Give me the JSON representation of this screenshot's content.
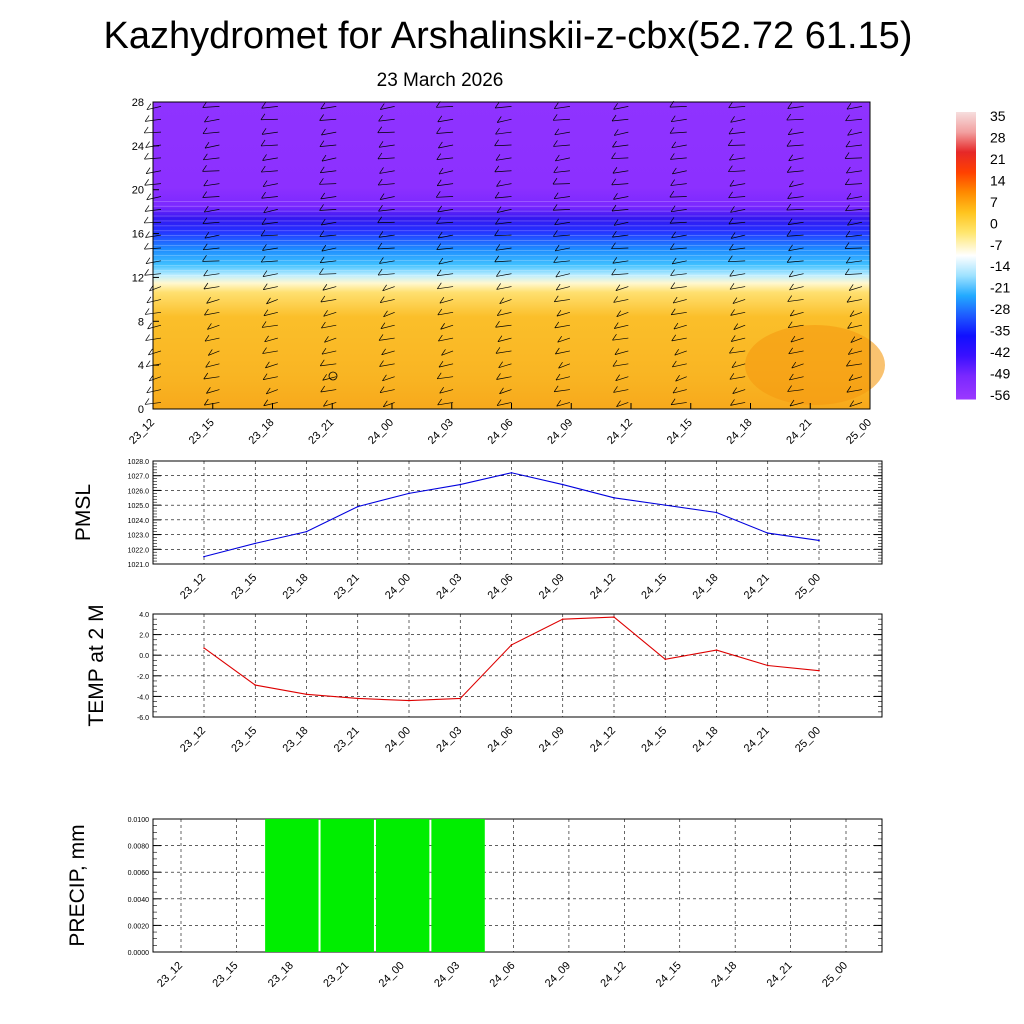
{
  "title": "Kazhydromet for Arshalinskii-z-cbx(52.72 61.15)",
  "subtitle": "23 March 2026",
  "time_labels": [
    "23_12",
    "23_15",
    "23_18",
    "23_21",
    "24_00",
    "24_03",
    "24_06",
    "24_09",
    "24_12",
    "24_15",
    "24_18",
    "24_21",
    "25_00"
  ],
  "colorbar": {
    "labels": [
      "35",
      "28",
      "21",
      "14",
      "7",
      "0",
      "-7",
      "-14",
      "-21",
      "-28",
      "-35",
      "-42",
      "-49",
      "-56"
    ],
    "colors": [
      "#ffffff",
      "#f2b4b4",
      "#e83030",
      "#ff5a00",
      "#ff9a00",
      "#ffd21e",
      "#fff5a0",
      "#ffffff",
      "#a0e6ff",
      "#28b4ff",
      "#1e64ff",
      "#0000ff",
      "#5a14ff",
      "#9632ff"
    ]
  },
  "chart_data": [
    {
      "type": "heatmap",
      "title": "",
      "ylabel": "",
      "ylim": [
        0,
        28
      ],
      "yticks": [
        "0",
        "4",
        "8",
        "12",
        "16",
        "20",
        "24",
        "28"
      ],
      "categories": [
        "23_12",
        "23_15",
        "23_18",
        "23_21",
        "24_00",
        "24_03",
        "24_06",
        "24_09",
        "24_12",
        "24_15",
        "24_18",
        "24_21",
        "25_00"
      ],
      "value_units": "temperature",
      "levels_temperature": [
        {
          "level": 0,
          "value": 5
        },
        {
          "level": 4,
          "value": 4
        },
        {
          "level": 8,
          "value": 2
        },
        {
          "level": 11,
          "value": -3
        },
        {
          "level": 12,
          "value": -14
        },
        {
          "level": 14,
          "value": -30
        },
        {
          "level": 16,
          "value": -45
        },
        {
          "level": 18,
          "value": -56
        },
        {
          "level": 20,
          "value": -60
        },
        {
          "level": 28,
          "value": -60
        }
      ],
      "overlay": "wind barbs",
      "colors": {
        "warm": "#f9b21a",
        "cold": "#9632ff"
      }
    },
    {
      "type": "line",
      "ylabel": "PMSL",
      "ylim": [
        1021.0,
        1028.0
      ],
      "yticks": [
        "1021.0",
        "1022.0",
        "1023.0",
        "1024.0",
        "1025.0",
        "1026.0",
        "1027.0",
        "1028.0"
      ],
      "categories": [
        "23_12",
        "23_15",
        "23_18",
        "23_21",
        "24_00",
        "24_03",
        "24_06",
        "24_09",
        "24_12",
        "24_15",
        "24_18",
        "24_21",
        "25_00"
      ],
      "series": [
        {
          "values": [
            1021.5,
            1022.4,
            1023.2,
            1024.9,
            1025.8,
            1026.4,
            1027.2,
            1026.4,
            1025.5,
            1025.0,
            1024.5,
            1023.1,
            1022.6
          ],
          "color": "#0000dd"
        }
      ],
      "grid": true
    },
    {
      "type": "line",
      "ylabel": "TEMP at 2 M",
      "ylim": [
        -6.0,
        4.0
      ],
      "yticks": [
        "-6.0",
        "-4.0",
        "-2.0",
        "0.0",
        "2.0",
        "4.0"
      ],
      "categories": [
        "23_12",
        "23_15",
        "23_18",
        "23_21",
        "24_00",
        "24_03",
        "24_06",
        "24_09",
        "24_12",
        "24_15",
        "24_18",
        "24_21",
        "25_00"
      ],
      "series": [
        {
          "values": [
            0.7,
            -2.9,
            -3.8,
            -4.2,
            -4.4,
            -4.2,
            1.0,
            3.5,
            3.7,
            -0.4,
            0.5,
            -1.0,
            -1.5
          ],
          "color": "#dd0000"
        }
      ],
      "grid": true
    },
    {
      "type": "bar",
      "ylabel": "PRECIP, mm",
      "ylim": [
        0.0,
        0.01
      ],
      "yticks": [
        "0.0000",
        "0.0020",
        "0.0040",
        "0.0060",
        "0.0080",
        "0.0100"
      ],
      "categories": [
        "23_12",
        "23_15",
        "23_18",
        "23_21",
        "24_00",
        "24_03",
        "24_06",
        "24_09",
        "24_12",
        "24_15",
        "24_18",
        "24_21",
        "25_00"
      ],
      "values": [
        0,
        0,
        0.01,
        0.01,
        0.01,
        0.01,
        0,
        0,
        0,
        0,
        0,
        0,
        0
      ],
      "color": "#00ee00",
      "grid": true
    }
  ]
}
